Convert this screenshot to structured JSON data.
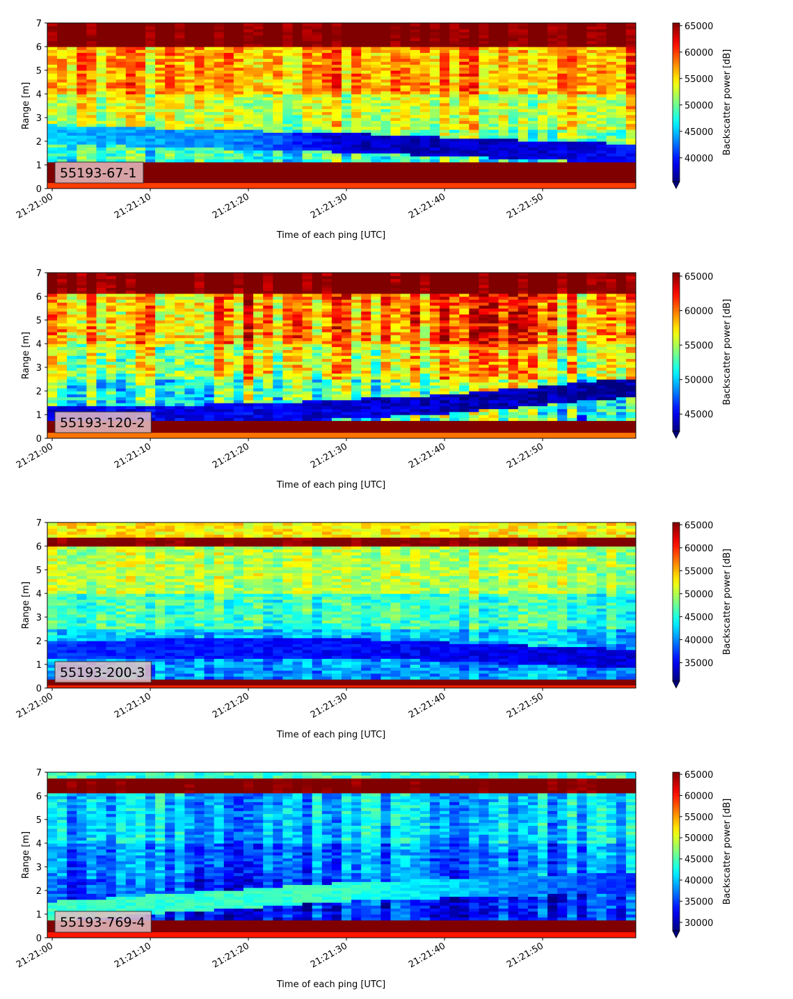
{
  "chart_data": [
    {
      "type": "heatmap",
      "label": "55193-67-1",
      "xlabel": "Time of each ping [UTC]",
      "ylabel": "Range [m]",
      "ylim": [
        0,
        7
      ],
      "xlim": [
        "21:20:59.5",
        "21:21:59.5"
      ],
      "xticks": [
        "21:21:00",
        "21:21:10",
        "21:21:20",
        "21:21:30",
        "21:21:40",
        "21:21:50"
      ],
      "yticks": [
        0,
        1,
        2,
        3,
        4,
        5,
        6,
        7
      ],
      "colorbar": {
        "label": "Backscatter power [dB]",
        "min": 35500,
        "max": 65500,
        "ticks": [
          40000,
          45000,
          50000,
          55000,
          60000,
          65000
        ]
      },
      "features": {
        "surface_band": [
          6.05,
          6.95
        ],
        "bottom_band": [
          0.2,
          1.15
        ],
        "bulk_value": 57000,
        "mid_value": 53000,
        "low_value": 50000,
        "dark_layer": [
          {
            "t": 0,
            "r": 2.35,
            "v": 45000
          },
          {
            "t": 20,
            "r": 2.1,
            "v": 43000
          },
          {
            "t": 30,
            "r": 2.0,
            "v": 37500
          },
          {
            "t": 45,
            "r": 1.75,
            "v": 37500
          },
          {
            "t": 59,
            "r": 1.55,
            "v": 39000
          }
        ],
        "stripe_gain": 3500
      }
    },
    {
      "type": "heatmap",
      "label": "55193-120-2",
      "xlabel": "Time of each ping [UTC]",
      "ylabel": "Range [m]",
      "ylim": [
        0,
        7
      ],
      "xlim": [
        "21:20:59.5",
        "21:21:59.5"
      ],
      "xticks": [
        "21:21:00",
        "21:21:10",
        "21:21:20",
        "21:21:30",
        "21:21:40",
        "21:21:50"
      ],
      "yticks": [
        0,
        1,
        2,
        3,
        4,
        5,
        6,
        7
      ],
      "colorbar": {
        "label": "Backscatter power [dB]",
        "min": 42500,
        "max": 65500,
        "ticks": [
          45000,
          50000,
          55000,
          60000,
          65000
        ]
      },
      "features": {
        "surface_band": [
          6.1,
          6.95
        ],
        "bottom_band": [
          0.2,
          0.8
        ],
        "bulk_value": 59500,
        "mid_value": 56500,
        "low_value": 53500,
        "dark_layer": [
          {
            "t": 0,
            "r": 1.05,
            "v": 45000
          },
          {
            "t": 20,
            "r": 1.1,
            "v": 45000
          },
          {
            "t": 40,
            "r": 1.5,
            "v": 44000
          },
          {
            "t": 59,
            "r": 2.2,
            "v": 43000
          }
        ],
        "stripe_gain": 4000
      }
    },
    {
      "type": "heatmap",
      "label": "55193-200-3",
      "xlabel": "Time of each ping [UTC]",
      "ylabel": "Range [m]",
      "ylim": [
        0,
        7
      ],
      "xlim": [
        "21:20:59.5",
        "21:21:59.5"
      ],
      "xticks": [
        "21:21:00",
        "21:21:10",
        "21:21:20",
        "21:21:30",
        "21:21:40",
        "21:21:50"
      ],
      "yticks": [
        0,
        1,
        2,
        3,
        4,
        5,
        6,
        7
      ],
      "colorbar": {
        "label": "Backscatter power [dB]",
        "min": 31000,
        "max": 65500,
        "ticks": [
          35000,
          40000,
          45000,
          50000,
          55000,
          60000,
          65000
        ]
      },
      "features": {
        "surface_band": [
          5.95,
          6.35
        ],
        "bottom_band": [
          0.1,
          0.35
        ],
        "bulk_value": 50000,
        "mid_value": 46000,
        "low_value": 42000,
        "dark_layer": [
          {
            "t": 0,
            "r": 1.7,
            "v": 37000
          },
          {
            "t": 30,
            "r": 1.75,
            "v": 35500
          },
          {
            "t": 59,
            "r": 1.3,
            "v": 34000
          }
        ],
        "stripe_gain": 2000
      }
    },
    {
      "type": "heatmap",
      "label": "55193-769-4",
      "xlabel": "Time of each ping [UTC]",
      "ylabel": "Range [m]",
      "ylim": [
        0,
        7
      ],
      "xlim": [
        "21:20:59.5",
        "21:21:59.5"
      ],
      "xticks": [
        "21:21:00",
        "21:21:10",
        "21:21:20",
        "21:21:30",
        "21:21:40",
        "21:21:50"
      ],
      "yticks": [
        0,
        1,
        2,
        3,
        4,
        5,
        6,
        7
      ],
      "colorbar": {
        "label": "Backscatter power [dB]",
        "min": 28000,
        "max": 65500,
        "ticks": [
          30000,
          35000,
          40000,
          45000,
          50000,
          55000,
          60000,
          65000
        ]
      },
      "features": {
        "surface_band": [
          6.1,
          6.7
        ],
        "bottom_band": [
          0.25,
          0.7
        ],
        "bulk_value": 40000,
        "mid_value": 37000,
        "low_value": 35000,
        "dark_layer": [
          {
            "t": 0,
            "r": 1.2,
            "v": 44000
          },
          {
            "t": 30,
            "r": 2.0,
            "v": 44000
          },
          {
            "t": 59,
            "r": 2.4,
            "v": 34000
          }
        ],
        "stripe_gain": 4000
      }
    }
  ]
}
